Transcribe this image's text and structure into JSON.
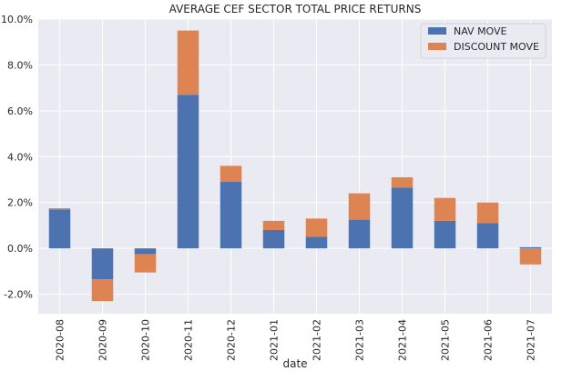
{
  "chart_data": {
    "type": "bar",
    "stacked": true,
    "title": "AVERAGE CEF SECTOR TOTAL PRICE RETURNS",
    "xlabel": "date",
    "ylabel": "",
    "categories": [
      "2020-08",
      "2020-09",
      "2020-10",
      "2020-11",
      "2020-12",
      "2021-01",
      "2021-02",
      "2021-03",
      "2021-04",
      "2021-05",
      "2021-06",
      "2021-07"
    ],
    "series": [
      {
        "name": "NAV MOVE",
        "color": "#4c72b0",
        "values": [
          1.7,
          -1.35,
          -0.25,
          6.7,
          2.9,
          0.8,
          0.5,
          1.25,
          2.65,
          1.2,
          1.1,
          0.05
        ]
      },
      {
        "name": "DISCOUNT MOVE",
        "color": "#dd8452",
        "values": [
          0.05,
          -0.95,
          -0.8,
          2.8,
          0.7,
          0.4,
          0.8,
          1.15,
          0.45,
          1.0,
          0.9,
          -0.7
        ]
      }
    ],
    "ylim": [
      -2.85,
      10.0
    ],
    "yticks": [
      -2.0,
      0.0,
      2.0,
      4.0,
      6.0,
      8.0,
      10.0
    ],
    "ytick_labels": [
      "-2.0%",
      "0.0%",
      "2.0%",
      "4.0%",
      "6.0%",
      "8.0%",
      "10.0%"
    ],
    "grid": true,
    "legend_position": "top-right",
    "background": "#eaeaf2",
    "grid_color": "#ffffff"
  }
}
